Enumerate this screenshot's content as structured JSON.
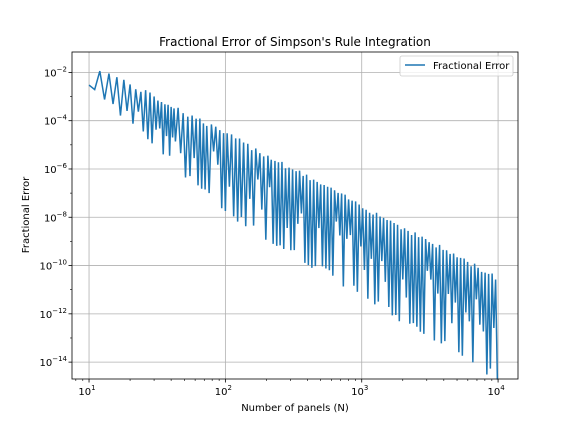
{
  "chart_data": {
    "type": "line",
    "title": "Fractional Error of Simpson's Rule Integration",
    "xlabel": "Number of panels (N)",
    "ylabel": "Fractional Error",
    "xscale": "log",
    "yscale": "log",
    "xlim": [
      7.5,
      14000
    ],
    "ylim": [
      2e-15,
      0.07
    ],
    "grid": true,
    "legend_position": "top-right",
    "x_ticks": [
      {
        "value": 10,
        "base": "10",
        "exp": "1"
      },
      {
        "value": 100,
        "base": "10",
        "exp": "2"
      },
      {
        "value": 1000,
        "base": "10",
        "exp": "3"
      },
      {
        "value": 10000,
        "base": "10",
        "exp": "4"
      }
    ],
    "y_ticks": [
      {
        "value": 0.01,
        "base": "10",
        "exp": "−2"
      },
      {
        "value": 0.0001,
        "base": "10",
        "exp": "−4"
      },
      {
        "value": 1e-06,
        "base": "10",
        "exp": "−6"
      },
      {
        "value": 1e-08,
        "base": "10",
        "exp": "−8"
      },
      {
        "value": 1e-10,
        "base": "10",
        "exp": "−10"
      },
      {
        "value": 1e-12,
        "base": "10",
        "exp": "−12"
      },
      {
        "value": 1e-14,
        "base": "10",
        "exp": "−14"
      }
    ],
    "series": [
      {
        "name": "Fractional Error",
        "color": "#1f77b4",
        "envelope": {
          "description": "error alternates between an upper and lower branch as N increases",
          "upper": {
            "x": [
              10,
              11,
              100,
              10000
            ],
            "y": [
              0.003,
              0.018,
              3e-05,
              3e-11
            ]
          },
          "lower": {
            "x": [
              10,
              12,
              100,
              10000
            ],
            "y": [
              0.003,
              0.0012,
              2e-08,
              2.5e-15
            ]
          }
        },
        "x_range": [
          10,
          10000
        ]
      }
    ]
  }
}
